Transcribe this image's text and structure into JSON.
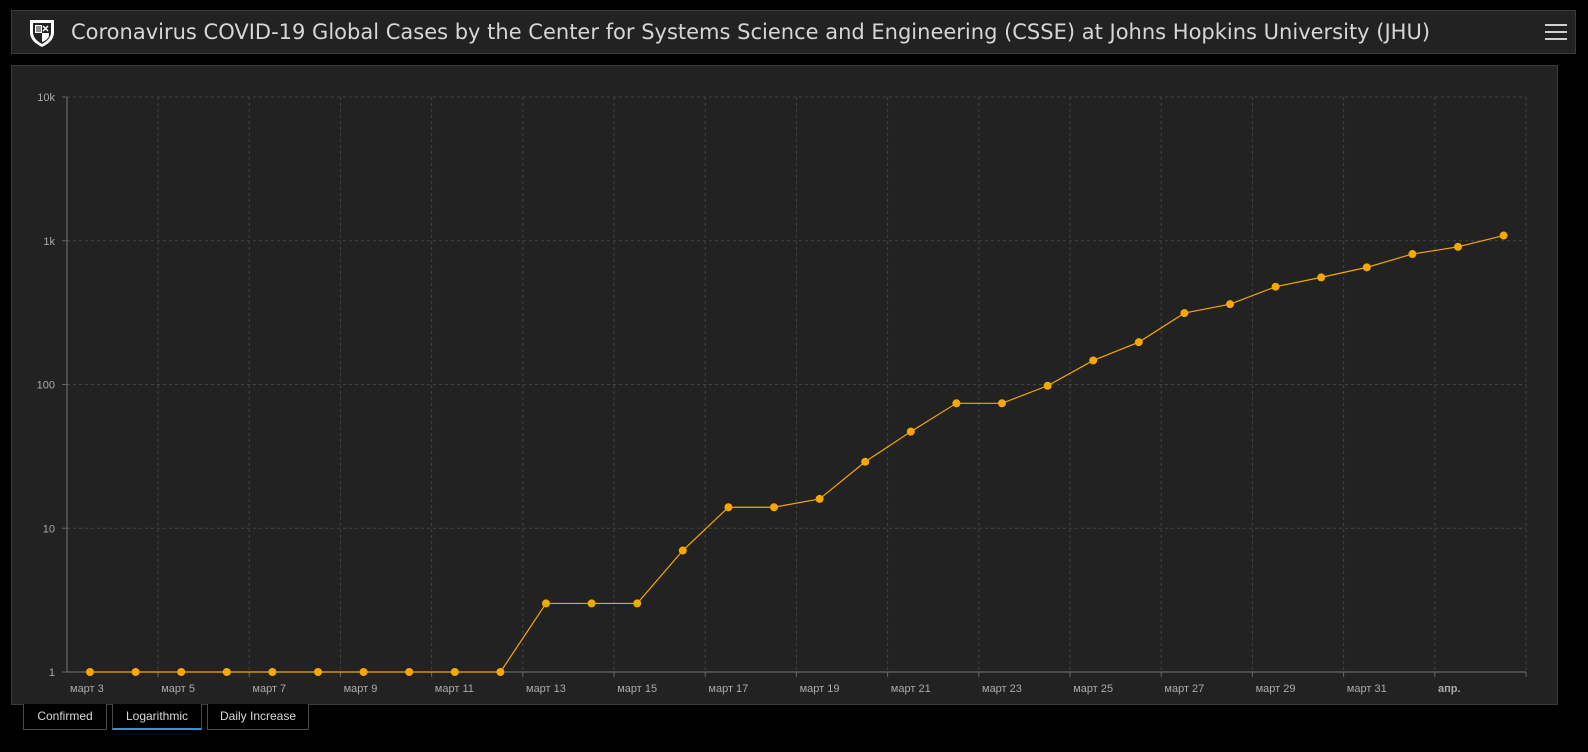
{
  "header": {
    "title": "Coronavirus COVID-19 Global Cases by the Center for Systems Science and Engineering (CSSE) at Johns Hopkins University (JHU)",
    "logo_icon": "university-shield-icon",
    "menu_icon": "hamburger-menu-icon"
  },
  "tabs": [
    {
      "label": "Confirmed",
      "active": false
    },
    {
      "label": "Logarithmic",
      "active": true
    },
    {
      "label": "Daily Increase",
      "active": false
    }
  ],
  "colors": {
    "series": "#f6a800",
    "background": "#222222",
    "active_tab": "#3b8fd9"
  },
  "chart_data": {
    "type": "line",
    "yscale": "log",
    "ylim": [
      1,
      10000
    ],
    "y_ticks": [
      "1",
      "10",
      "100",
      "1k",
      "10k"
    ],
    "x_ticks": [
      "март 3",
      "март 5",
      "март 7",
      "март 9",
      "март 11",
      "март 13",
      "март 15",
      "март 17",
      "март 19",
      "март 21",
      "март 23",
      "март 25",
      "март 27",
      "март 29",
      "март 31",
      "апр."
    ],
    "x_start": "2020-03-03",
    "x_end": "2020-04-02",
    "grid": true,
    "series": [
      {
        "values": [
          1,
          1,
          1,
          1,
          1,
          1,
          1,
          1,
          1,
          1,
          3,
          3,
          3,
          7,
          14,
          14,
          16,
          29,
          47,
          74,
          74,
          98,
          147,
          197,
          314,
          362,
          479,
          556,
          653,
          808,
          907,
          1087
        ]
      }
    ]
  }
}
